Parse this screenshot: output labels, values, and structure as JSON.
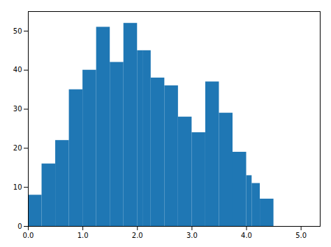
{
  "chart_data": {
    "type": "histogram",
    "bins": [
      0.0,
      0.25,
      0.5,
      0.75,
      1.0,
      1.25,
      1.5,
      1.75,
      2.0,
      2.1,
      2.25,
      2.5,
      2.75,
      3.0,
      3.25,
      3.5,
      3.75,
      4.0,
      4.1,
      4.25,
      4.5,
      4.75,
      5.0,
      5.25
    ],
    "values": [
      8,
      16,
      22,
      35,
      40,
      51,
      42,
      52,
      45,
      45,
      38,
      36,
      28,
      24,
      37,
      29,
      19,
      13,
      11,
      7,
      0,
      0,
      0
    ],
    "color": "#1f77b4",
    "xlim": [
      0,
      5.35
    ],
    "xticks": [
      0,
      1,
      2,
      3,
      4,
      5
    ],
    "ylim": [
      0,
      55
    ],
    "yticks": [
      0,
      10,
      20,
      30,
      40,
      50
    ]
  }
}
